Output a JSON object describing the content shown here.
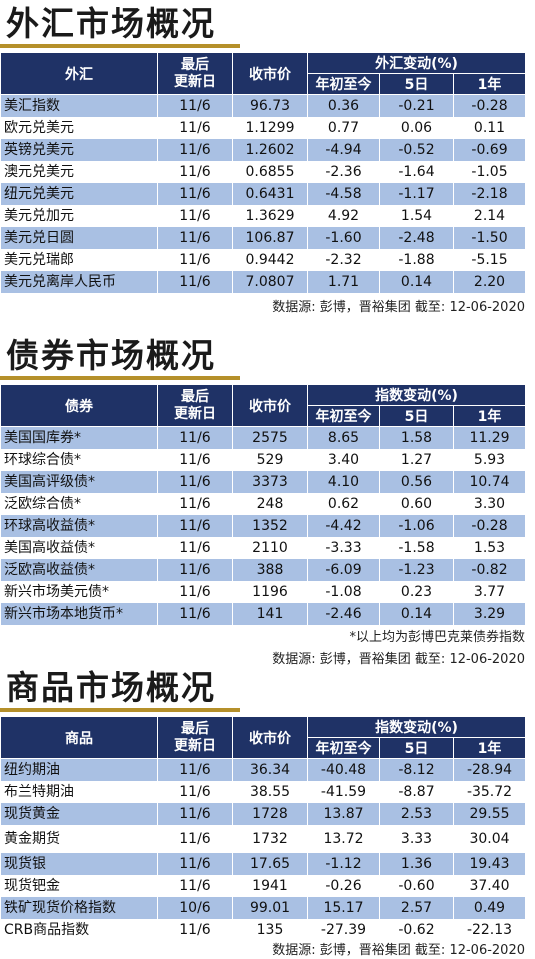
{
  "fx": {
    "title": "外汇市场概况",
    "headers": {
      "name": "外汇",
      "date": "最后\n更新日",
      "close": "收市价",
      "change_group": "外汇变动(%)",
      "ytd": "年初至今",
      "d5": "5日",
      "y1": "1年"
    },
    "rows": [
      {
        "name": "美汇指数",
        "date": "11/6",
        "close": "96.73",
        "ytd": "0.36",
        "d5": "-0.21",
        "y1": "-0.28"
      },
      {
        "name": "欧元兑美元",
        "date": "11/6",
        "close": "1.1299",
        "ytd": "0.77",
        "d5": "0.06",
        "y1": "0.11"
      },
      {
        "name": "英镑兑美元",
        "date": "11/6",
        "close": "1.2602",
        "ytd": "-4.94",
        "d5": "-0.52",
        "y1": "-0.69"
      },
      {
        "name": "澳元兑美元",
        "date": "11/6",
        "close": "0.6855",
        "ytd": "-2.36",
        "d5": "-1.64",
        "y1": "-1.05"
      },
      {
        "name": "纽元兑美元",
        "date": "11/6",
        "close": "0.6431",
        "ytd": "-4.58",
        "d5": "-1.17",
        "y1": "-2.18"
      },
      {
        "name": "美元兑加元",
        "date": "11/6",
        "close": "1.3629",
        "ytd": "4.92",
        "d5": "1.54",
        "y1": "2.14"
      },
      {
        "name": "美元兑日圆",
        "date": "11/6",
        "close": "106.87",
        "ytd": "-1.60",
        "d5": "-2.48",
        "y1": "-1.50"
      },
      {
        "name": "美元兑瑞郎",
        "date": "11/6",
        "close": "0.9442",
        "ytd": "-2.32",
        "d5": "-1.88",
        "y1": "-5.15"
      },
      {
        "name": "美元兑离岸人民币",
        "date": "11/6",
        "close": "7.0807",
        "ytd": "1.71",
        "d5": "0.14",
        "y1": "2.20"
      }
    ],
    "source": "数据源: 彭博，晋裕集团 截至: 12-06-2020"
  },
  "bond": {
    "title": "债券市场概况",
    "headers": {
      "name": "债券",
      "date": "最后\n更新日",
      "close": "收市价",
      "change_group": "指数变动(%)",
      "ytd": "年初至今",
      "d5": "5日",
      "y1": "1年"
    },
    "rows": [
      {
        "name": "美国国库券*",
        "date": "11/6",
        "close": "2575",
        "ytd": "8.65",
        "d5": "1.58",
        "y1": "11.29"
      },
      {
        "name": "环球综合债*",
        "date": "11/6",
        "close": "529",
        "ytd": "3.40",
        "d5": "1.27",
        "y1": "5.93"
      },
      {
        "name": "美国高评级债*",
        "date": "11/6",
        "close": "3373",
        "ytd": "4.10",
        "d5": "0.56",
        "y1": "10.74"
      },
      {
        "name": "泛欧综合债*",
        "date": "11/6",
        "close": "248",
        "ytd": "0.62",
        "d5": "0.60",
        "y1": "3.30"
      },
      {
        "name": "环球高收益债*",
        "date": "11/6",
        "close": "1352",
        "ytd": "-4.42",
        "d5": "-1.06",
        "y1": "-0.28"
      },
      {
        "name": "美国高收益债*",
        "date": "11/6",
        "close": "2110",
        "ytd": "-3.33",
        "d5": "-1.58",
        "y1": "1.53"
      },
      {
        "name": "泛欧高收益债*",
        "date": "11/6",
        "close": "388",
        "ytd": "-6.09",
        "d5": "-1.23",
        "y1": "-0.82"
      },
      {
        "name": "新兴市场美元债*",
        "date": "11/6",
        "close": "1196",
        "ytd": "-1.08",
        "d5": "0.23",
        "y1": "3.77"
      },
      {
        "name": "新兴市场本地货币*",
        "date": "11/6",
        "close": "141",
        "ytd": "-2.46",
        "d5": "0.14",
        "y1": "3.29"
      }
    ],
    "footnote": "*以上均为彭博巴克莱债券指数",
    "source": "数据源: 彭博，晋裕集团 截至: 12-06-2020"
  },
  "commodity": {
    "title": "商品市场概况",
    "headers": {
      "name": "商品",
      "date": "最后\n更新日",
      "close": "收市价",
      "change_group": "指数变动(%)",
      "ytd": "年初至今",
      "d5": "5日",
      "y1": "1年"
    },
    "rows": [
      {
        "name": "纽约期油",
        "date": "11/6",
        "close": "36.34",
        "ytd": "-40.48",
        "d5": "-8.12",
        "y1": "-28.94"
      },
      {
        "name": "布兰特期油",
        "date": "11/6",
        "close": "38.55",
        "ytd": "-41.59",
        "d5": "-8.87",
        "y1": "-35.72"
      },
      {
        "name": "现货黄金",
        "date": "11/6",
        "close": "1728",
        "ytd": "13.87",
        "d5": "2.53",
        "y1": "29.55"
      },
      {
        "name": "黄金期货",
        "date": "11/6",
        "close": "1732",
        "ytd": "13.72",
        "d5": "3.33",
        "y1": "30.04"
      },
      {
        "name": "现货银",
        "date": "11/6",
        "close": "17.65",
        "ytd": "-1.12",
        "d5": "1.36",
        "y1": "19.43"
      },
      {
        "name": "现货钯金",
        "date": "11/6",
        "close": "1941",
        "ytd": "-0.26",
        "d5": "-0.60",
        "y1": "37.40"
      },
      {
        "name": "铁矿现货价格指数",
        "date": "10/6",
        "close": "99.01",
        "ytd": "15.17",
        "d5": "2.57",
        "y1": "0.49"
      },
      {
        "name": "CRB商品指数",
        "date": "11/6",
        "close": "135",
        "ytd": "-27.39",
        "d5": "-0.62",
        "y1": "-22.13"
      }
    ],
    "source": "数据源: 彭博，晋裕集团 截至: 12-06-2020"
  },
  "colors": {
    "header_bg": "#1f3266",
    "row_alt": "#a9c0e3",
    "gold_rule": "#b5902a"
  }
}
